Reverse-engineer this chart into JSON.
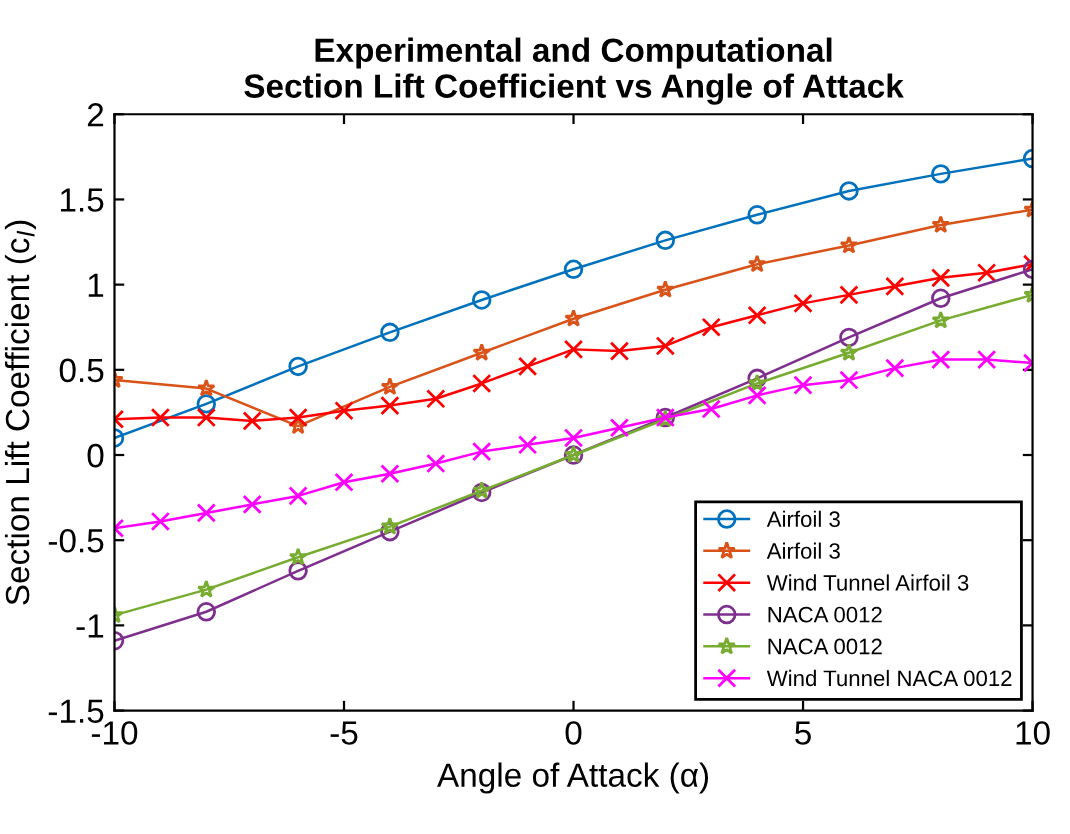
{
  "chart_data": {
    "type": "line",
    "title": "Experimental and Computational\nSection Lift Coefficient vs Angle of Attack",
    "xlabel": "Angle of Attack (α)",
    "ylabel": "Section Lift Coefficient (c$_{l}$)",
    "xlim": [
      -10,
      10
    ],
    "ylim": [
      -1.5,
      2
    ],
    "xticks": [
      -10,
      -5,
      0,
      5,
      10
    ],
    "yticks": [
      -1.5,
      -1,
      -0.5,
      0,
      0.5,
      1,
      1.5,
      2
    ],
    "grid": false,
    "legend": "bottom right",
    "series": [
      {
        "name": "Airfoil 3",
        "color": "#0072bd",
        "marker": "circle",
        "x": [
          -10,
          -8,
          -6,
          -4,
          -2,
          0,
          2,
          4,
          6,
          8,
          10
        ],
        "values": [
          0.1,
          0.3,
          0.52,
          0.72,
          0.91,
          1.09,
          1.26,
          1.41,
          1.55,
          1.65,
          1.74
        ]
      },
      {
        "name": "Airfoil 3",
        "color": "#d95319",
        "marker": "star",
        "x": [
          -10,
          -8,
          -6,
          -4,
          -2,
          0,
          2,
          4,
          6,
          8,
          10
        ],
        "values": [
          0.44,
          0.39,
          0.17,
          0.4,
          0.6,
          0.8,
          0.97,
          1.12,
          1.23,
          1.35,
          1.44
        ]
      },
      {
        "name": "Wind Tunnel Airfoil 3",
        "color": "#ff0000",
        "marker": "cross",
        "x": [
          -10,
          -9,
          -8,
          -7,
          -6,
          -5,
          -4,
          -3,
          -2,
          -1,
          0,
          1,
          2,
          3,
          4,
          5,
          6,
          7,
          8,
          9,
          10
        ],
        "values": [
          0.21,
          0.22,
          0.22,
          0.2,
          0.22,
          0.26,
          0.29,
          0.33,
          0.42,
          0.52,
          0.62,
          0.61,
          0.64,
          0.75,
          0.82,
          0.89,
          0.94,
          0.99,
          1.04,
          1.07,
          1.12
        ]
      },
      {
        "name": "NACA 0012",
        "color": "#7e2f8e",
        "marker": "circle",
        "x": [
          -10,
          -8,
          -6,
          -4,
          -2,
          0,
          2,
          4,
          6,
          8,
          10
        ],
        "values": [
          -1.09,
          -0.92,
          -0.68,
          -0.45,
          -0.22,
          0,
          0.22,
          0.45,
          0.69,
          0.92,
          1.09
        ]
      },
      {
        "name": "NACA 0012",
        "color": "#77ac30",
        "marker": "star",
        "x": [
          -10,
          -8,
          -6,
          -4,
          -2,
          0,
          2,
          4,
          6,
          8,
          10
        ],
        "values": [
          -0.94,
          -0.79,
          -0.6,
          -0.42,
          -0.21,
          0,
          0.21,
          0.42,
          0.6,
          0.79,
          0.94
        ]
      },
      {
        "name": "Wind Tunnel NACA 0012",
        "color": "#ff00ff",
        "marker": "cross",
        "x": [
          -10,
          -9,
          -8,
          -7,
          -6,
          -5,
          -4,
          -3,
          -2,
          -1,
          0,
          1,
          2,
          3,
          4,
          5,
          6,
          7,
          8,
          9,
          10
        ],
        "values": [
          -0.43,
          -0.39,
          -0.34,
          -0.29,
          -0.24,
          -0.16,
          -0.11,
          -0.05,
          0.02,
          0.06,
          0.1,
          0.16,
          0.22,
          0.27,
          0.35,
          0.41,
          0.44,
          0.51,
          0.56,
          0.56,
          0.54
        ]
      }
    ]
  }
}
